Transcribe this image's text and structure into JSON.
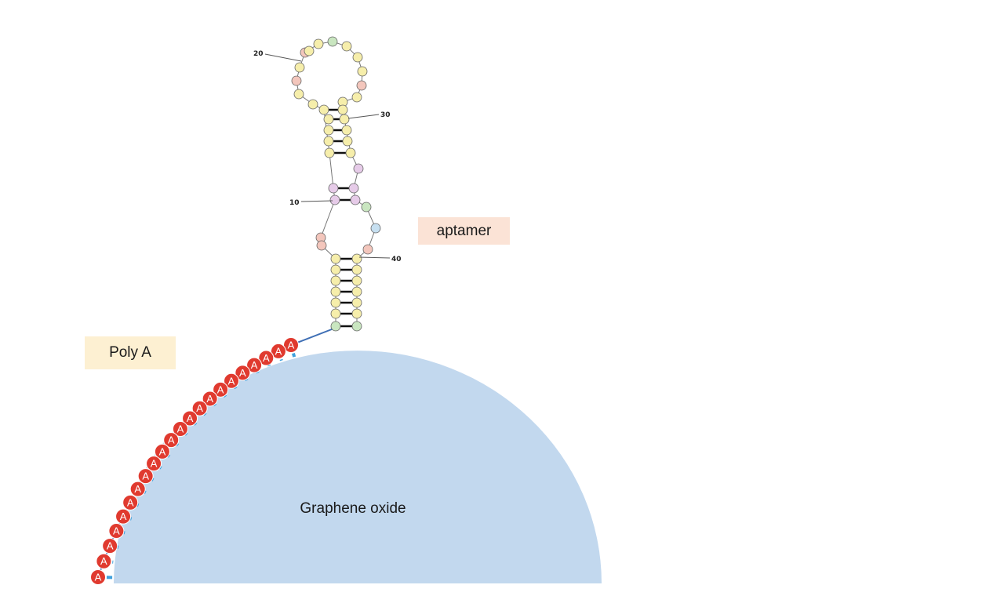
{
  "labels": {
    "aptamer": "aptamer",
    "poly_a": "Poly A",
    "graphene_oxide": "Graphene oxide"
  },
  "index_labels": [
    "20",
    "30",
    "10",
    "40"
  ],
  "poly_a_base": "A",
  "poly_a_count": 22,
  "colors": {
    "graphene_oxide": "#c2d8ee",
    "poly_a_circle": "#e03a2f",
    "poly_a_tick": "#3ea0dc",
    "backbone": "#3f6fb5",
    "aptamer_label_bg": "#fbe3d6",
    "poly_a_label_bg": "#fdf0d2",
    "nt_yellow": "#f6eeab",
    "nt_pink": "#f3c6bc",
    "nt_purple": "#e6cbe8",
    "nt_green": "#c9e6c0",
    "nt_blue": "#c6dff0"
  }
}
